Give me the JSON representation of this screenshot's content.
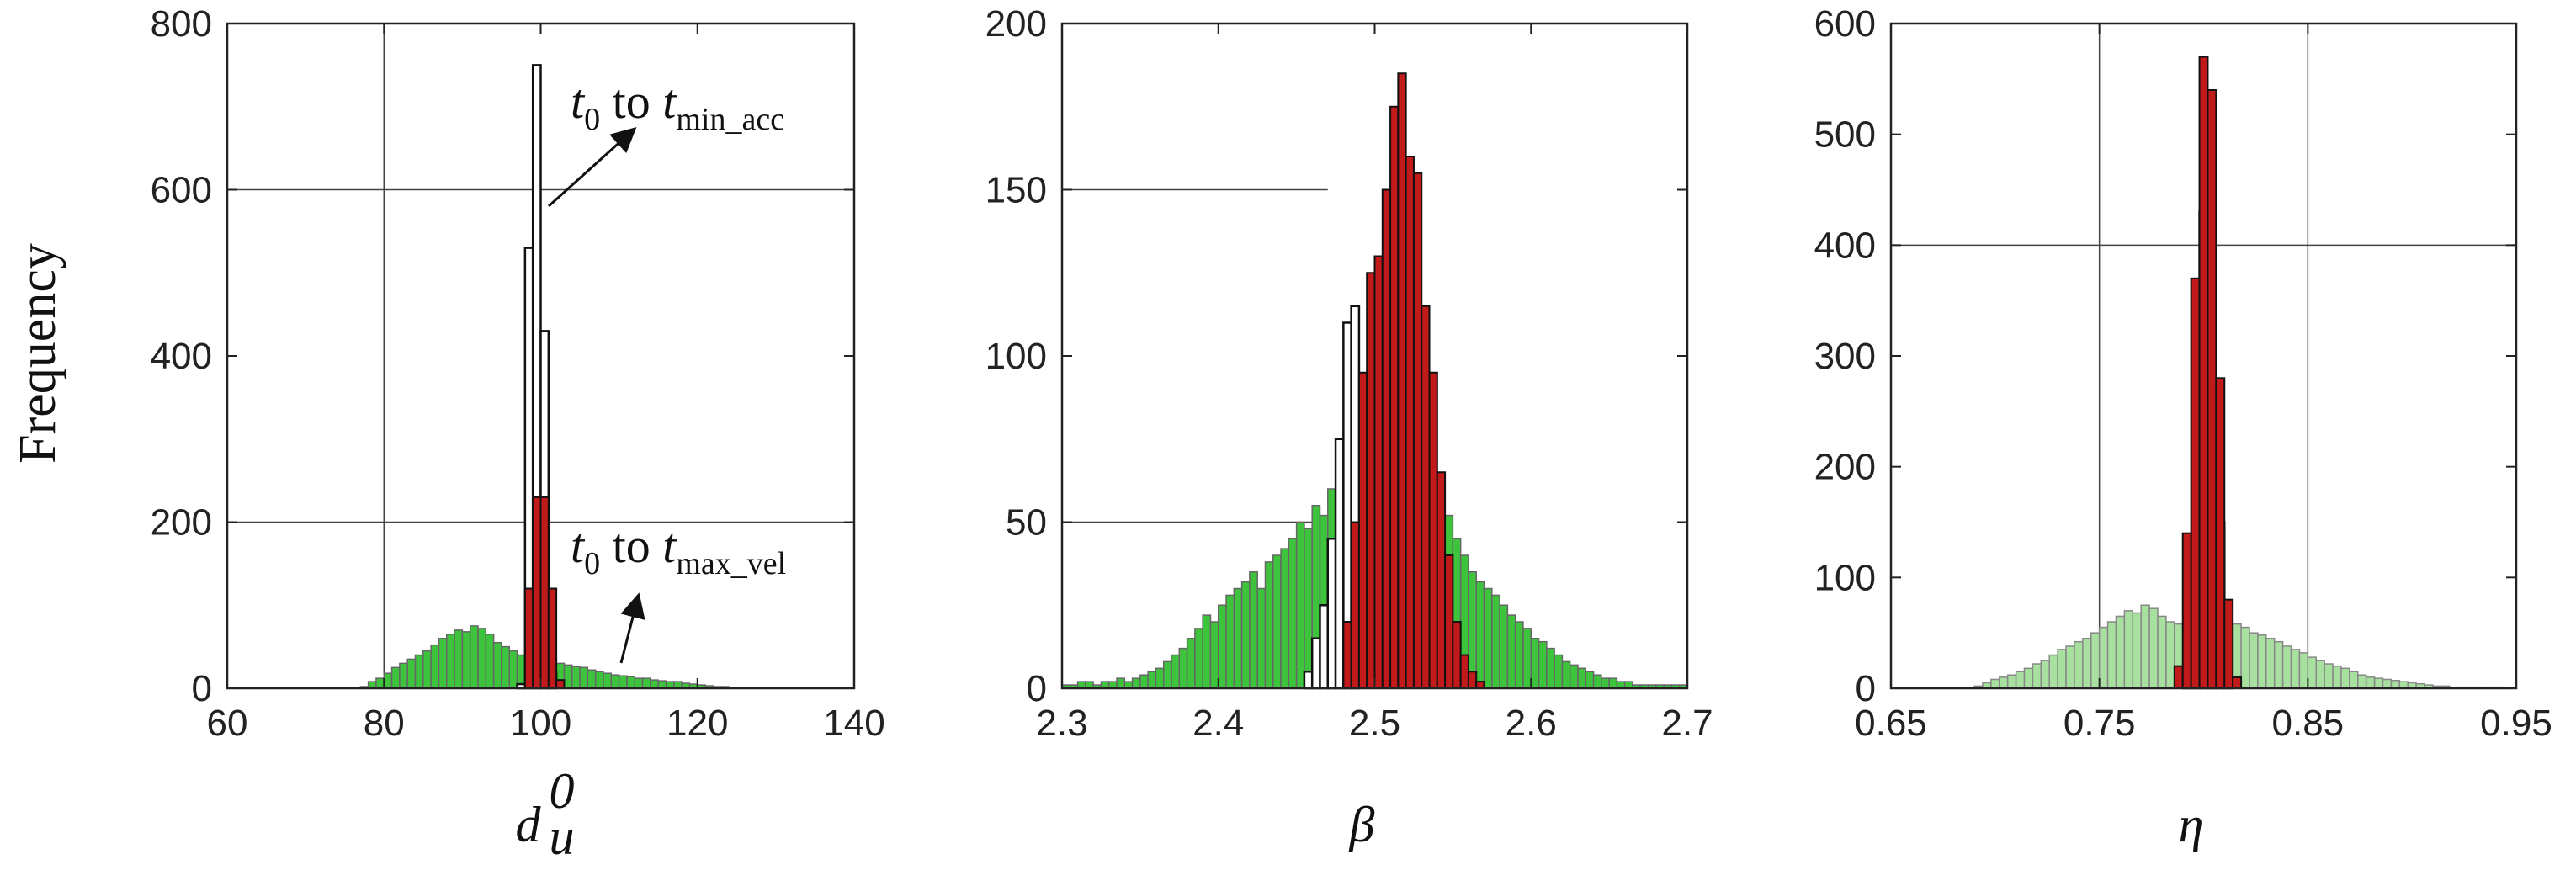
{
  "figure": {
    "ylabel": "Frequency"
  },
  "colors": {
    "green": "#3ec43c",
    "light_green": "#a8e0a0",
    "red": "#c01a1a",
    "outline_white": "#ffffff",
    "axis": "#222222"
  },
  "chart_data": [
    {
      "type": "histogram",
      "panel": "left",
      "xlabel_base": "d",
      "xlabel_sub": "u",
      "xlabel_sup": "0",
      "xlim": [
        60,
        140
      ],
      "ylim": [
        0,
        800
      ],
      "xticks": [
        60,
        80,
        100,
        120,
        140
      ],
      "yticks": [
        0,
        200,
        400,
        600,
        800
      ],
      "grid_x": [
        80
      ],
      "grid_y": [
        200,
        600
      ],
      "annotations": [
        {
          "base": "t",
          "sub0": "0",
          "mid": " to ",
          "base2": "t",
          "sub2": "min_acc"
        },
        {
          "base": "t",
          "sub0": "0",
          "mid": " to ",
          "base2": "t",
          "sub2": "max_vel"
        }
      ],
      "series": [
        {
          "style": "green",
          "x0": 77,
          "bin_width": 1,
          "values": [
            2,
            8,
            12,
            18,
            25,
            30,
            35,
            40,
            45,
            52,
            60,
            65,
            70,
            68,
            75,
            72,
            65,
            55,
            50,
            45,
            40,
            42,
            38,
            35,
            32,
            30,
            28,
            26,
            25,
            22,
            20,
            18,
            16,
            15,
            14,
            12,
            12,
            10,
            9,
            8,
            8,
            6,
            5,
            4,
            3,
            2,
            2,
            1,
            1,
            1,
            1,
            1,
            1,
            1,
            1,
            1,
            1,
            1,
            1,
            1,
            1,
            1,
            1
          ]
        },
        {
          "style": "outline",
          "x0": 97,
          "bin_width": 1,
          "values": [
            5,
            530,
            750,
            430,
            20
          ]
        },
        {
          "style": "red",
          "x0": 98,
          "bin_width": 1,
          "values": [
            120,
            230,
            230,
            120,
            10
          ]
        }
      ]
    },
    {
      "type": "histogram",
      "panel": "middle",
      "xlabel_base": "β",
      "xlim": [
        2.3,
        2.7
      ],
      "ylim": [
        0,
        200
      ],
      "xticks": [
        2.3,
        2.4,
        2.5,
        2.6,
        2.7
      ],
      "yticks": [
        0,
        50,
        100,
        150,
        200
      ],
      "grid_x": [],
      "grid_y": [
        50,
        150
      ],
      "series": [
        {
          "style": "green",
          "x0": 2.3,
          "bin_width": 0.005,
          "values": [
            1,
            1,
            2,
            2,
            1,
            2,
            2,
            3,
            2,
            3,
            4,
            5,
            6,
            8,
            10,
            12,
            15,
            18,
            22,
            20,
            25,
            28,
            30,
            32,
            35,
            30,
            38,
            40,
            42,
            45,
            50,
            48,
            55,
            52,
            60,
            65,
            68,
            80,
            75,
            55,
            45,
            50,
            52,
            48,
            46,
            45,
            50,
            55,
            48,
            52,
            45,
            40,
            35,
            32,
            30,
            28,
            25,
            22,
            20,
            18,
            15,
            14,
            12,
            10,
            8,
            7,
            6,
            5,
            4,
            3,
            3,
            2,
            2,
            1,
            1,
            1,
            1,
            1,
            1,
            1
          ]
        },
        {
          "style": "outline",
          "x0": 2.455,
          "bin_width": 0.005,
          "values": [
            5,
            15,
            25,
            45,
            75,
            110,
            115
          ]
        },
        {
          "style": "red",
          "x0": 2.48,
          "bin_width": 0.005,
          "values": [
            20,
            50,
            95,
            125,
            130,
            150,
            175,
            185,
            160,
            155,
            115,
            95,
            65,
            40,
            20,
            10,
            5,
            2
          ]
        }
      ]
    },
    {
      "type": "histogram",
      "panel": "right",
      "xlabel_base": "η",
      "xlim": [
        0.65,
        0.95
      ],
      "ylim": [
        0,
        600
      ],
      "xticks": [
        0.65,
        0.75,
        0.85,
        0.95
      ],
      "yticks": [
        0,
        100,
        200,
        300,
        400,
        500,
        600
      ],
      "grid_x": [
        0.75,
        0.85
      ],
      "grid_y": [
        400
      ],
      "series": [
        {
          "style": "light_green",
          "x0": 0.69,
          "bin_width": 0.004,
          "values": [
            2,
            5,
            8,
            10,
            12,
            15,
            18,
            22,
            25,
            30,
            35,
            38,
            42,
            45,
            50,
            55,
            60,
            65,
            70,
            68,
            75,
            72,
            65,
            60,
            58,
            55,
            52,
            50,
            62,
            65,
            62,
            58,
            55,
            50,
            48,
            45,
            42,
            38,
            35,
            32,
            28,
            25,
            22,
            20,
            18,
            15,
            12,
            10,
            9,
            8,
            7,
            6,
            5,
            4,
            3,
            2,
            2,
            1,
            1,
            1,
            1,
            1,
            1,
            1
          ]
        },
        {
          "style": "outline",
          "x0": 0.79,
          "bin_width": 0.004,
          "values": [
            20,
            130,
            430,
            290,
            150,
            10
          ]
        },
        {
          "style": "red",
          "x0": 0.786,
          "bin_width": 0.004,
          "values": [
            20,
            140,
            370,
            570,
            540,
            280,
            80,
            10
          ]
        }
      ]
    }
  ]
}
